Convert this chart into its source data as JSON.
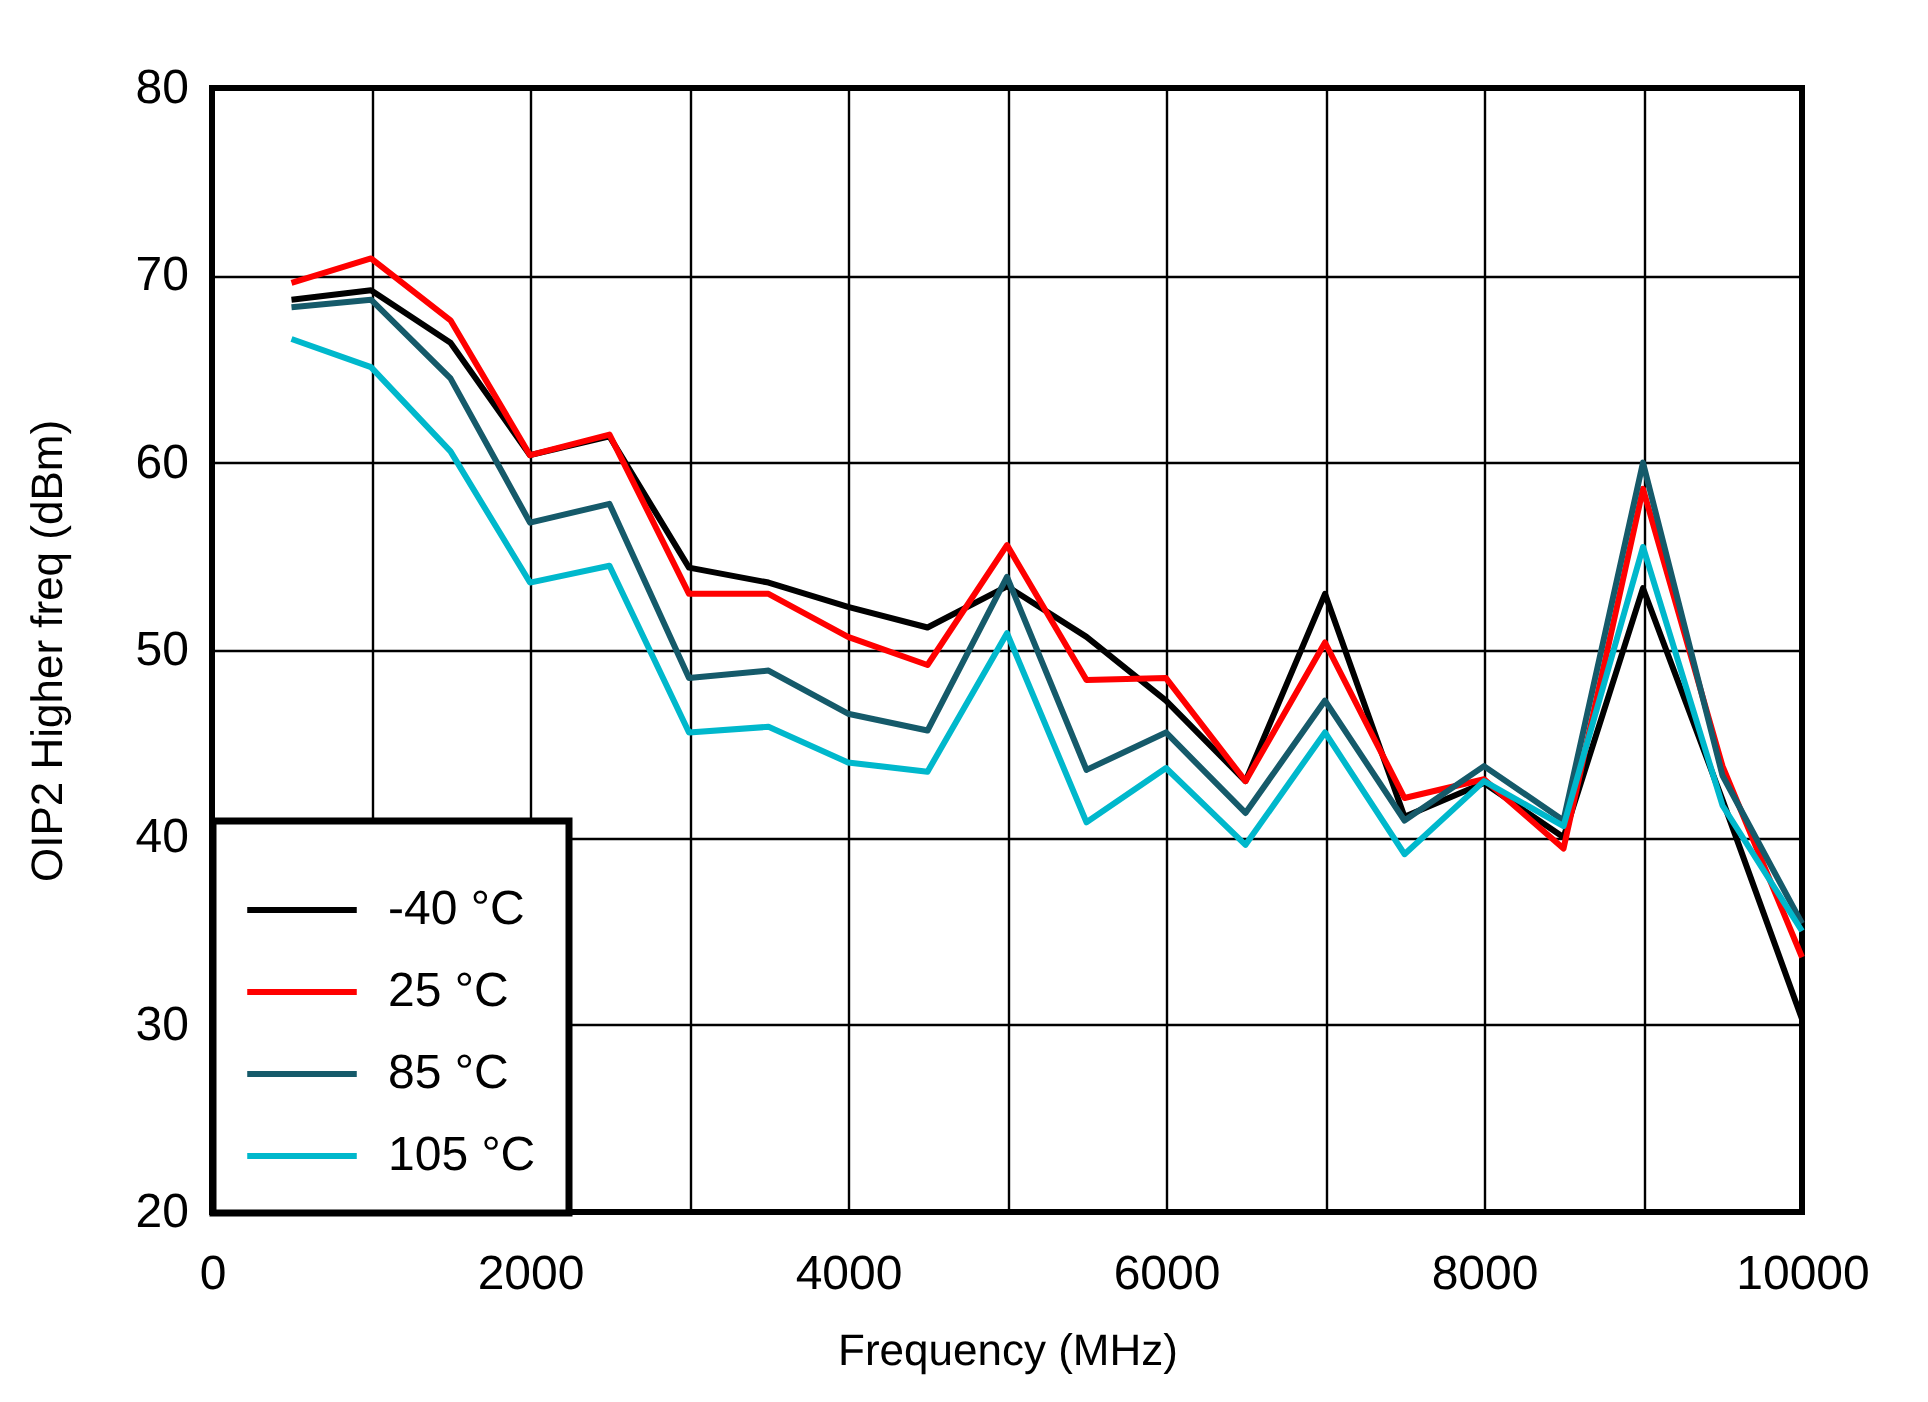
{
  "chart_data": {
    "type": "line",
    "xlabel": "Frequency (MHz)",
    "ylabel": "OIP2 Higher freq (dBm)",
    "x": [
      500,
      1000,
      1500,
      2000,
      2500,
      3000,
      3500,
      4000,
      4500,
      5000,
      5500,
      6000,
      6500,
      7000,
      7500,
      8000,
      8500,
      9000,
      9500,
      10000
    ],
    "xlim": [
      0,
      10000
    ],
    "xticks": [
      0,
      {
        "value": 1000,
        "label": null
      },
      2000,
      {
        "value": 3000,
        "label": null
      },
      4000,
      {
        "value": 5000,
        "label": null
      },
      6000,
      {
        "value": 7000,
        "label": null
      },
      8000,
      {
        "value": 9000,
        "label": null
      },
      10000
    ],
    "ylim": [
      20,
      80
    ],
    "yticks": [
      20,
      30,
      40,
      50,
      60,
      70,
      80
    ],
    "grid": true,
    "legend": "bottom left",
    "line_style": "solid",
    "series": [
      {
        "name": "-40 °C",
        "color": "#000000",
        "values": [
          68.7,
          69.2,
          66.4,
          60.4,
          61.4,
          54.4,
          53.6,
          52.3,
          51.2,
          53.4,
          50.7,
          47.3,
          43.0,
          53.0,
          41.1,
          42.9,
          40.0,
          53.3,
          42.0,
          30.3
        ]
      },
      {
        "name": "25 °C",
        "color": "#ff0000",
        "values": [
          69.6,
          70.9,
          67.6,
          60.4,
          61.5,
          53.0,
          53.0,
          50.7,
          49.2,
          55.6,
          48.4,
          48.5,
          43.0,
          50.4,
          42.1,
          43.1,
          39.4,
          58.6,
          43.8,
          33.6
        ]
      },
      {
        "name": "85 °C",
        "color": "#155a6a",
        "values": [
          68.3,
          68.7,
          64.5,
          56.8,
          57.8,
          48.5,
          48.9,
          46.6,
          45.7,
          53.9,
          43.6,
          45.6,
          41.3,
          47.3,
          40.9,
          43.8,
          40.9,
          60.0,
          43.3,
          35.4
        ]
      },
      {
        "name": "105 °C",
        "color": "#00b8cc",
        "values": [
          66.6,
          65.1,
          60.6,
          53.6,
          54.5,
          45.6,
          45.9,
          44.0,
          43.5,
          50.9,
          40.8,
          43.7,
          39.6,
          45.6,
          39.1,
          43.0,
          40.6,
          55.5,
          41.7,
          35.0
        ]
      }
    ]
  }
}
